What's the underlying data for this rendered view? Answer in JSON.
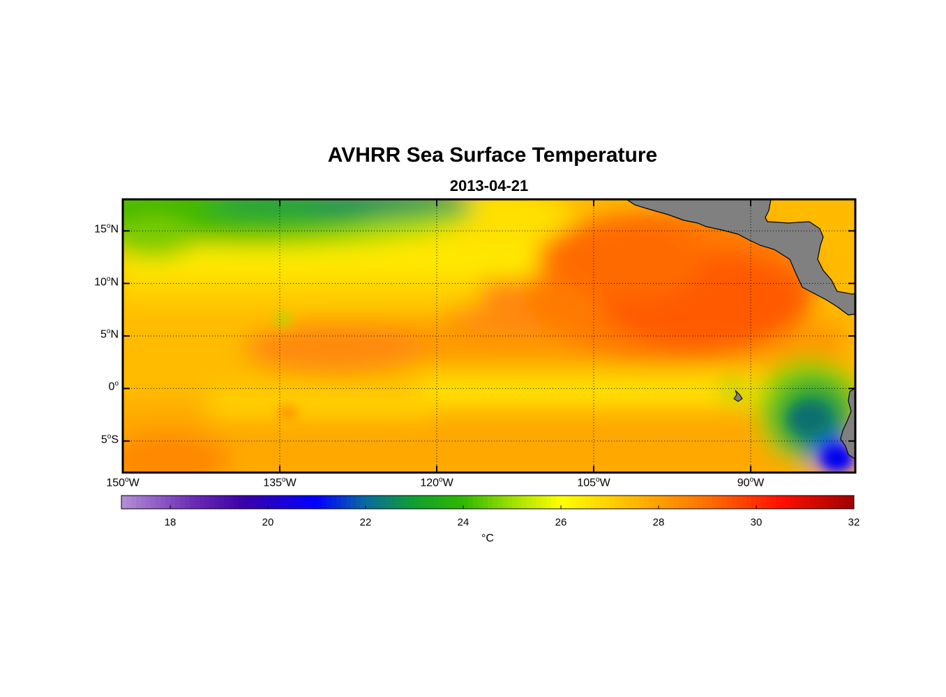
{
  "title": "AVHRR Sea Surface Temperature",
  "subtitle": "2013-04-21",
  "map": {
    "lon_range": [
      -150,
      -80
    ],
    "lat_range": [
      -8,
      18
    ],
    "grid": "dotted",
    "lon_ticks": [
      {
        "value": -150,
        "deg": "150",
        "hemi": "W"
      },
      {
        "value": -135,
        "deg": "135",
        "hemi": "W"
      },
      {
        "value": -120,
        "deg": "120",
        "hemi": "W"
      },
      {
        "value": -105,
        "deg": "105",
        "hemi": "W"
      },
      {
        "value": -90,
        "deg": "90",
        "hemi": "W"
      }
    ],
    "lat_ticks": [
      {
        "value": 15,
        "deg": "15",
        "hemi": "N"
      },
      {
        "value": 10,
        "deg": "10",
        "hemi": "N"
      },
      {
        "value": 5,
        "deg": "5",
        "hemi": "N"
      },
      {
        "value": 0,
        "deg": "0",
        "hemi": ""
      },
      {
        "value": -5,
        "deg": "5",
        "hemi": "S"
      }
    ],
    "land_color": "#808080"
  },
  "colorbar": {
    "min": 17,
    "max": 32,
    "ticks": [
      "18",
      "20",
      "22",
      "24",
      "26",
      "28",
      "30",
      "32"
    ],
    "unit": "°C",
    "stops": [
      {
        "t": 17,
        "color": "#b48fd8"
      },
      {
        "t": 18.5,
        "color": "#6a2ab4"
      },
      {
        "t": 19.5,
        "color": "#3c00a8"
      },
      {
        "t": 21,
        "color": "#0000ff"
      },
      {
        "t": 22,
        "color": "#0a6aa0"
      },
      {
        "t": 23,
        "color": "#10a030"
      },
      {
        "t": 24,
        "color": "#30b800"
      },
      {
        "t": 25,
        "color": "#a0e000"
      },
      {
        "t": 26,
        "color": "#ffff00"
      },
      {
        "t": 27,
        "color": "#ffd000"
      },
      {
        "t": 28,
        "color": "#ffa000"
      },
      {
        "t": 29,
        "color": "#ff7000"
      },
      {
        "t": 30.5,
        "color": "#ff1000"
      },
      {
        "t": 32,
        "color": "#a00000"
      }
    ]
  }
}
